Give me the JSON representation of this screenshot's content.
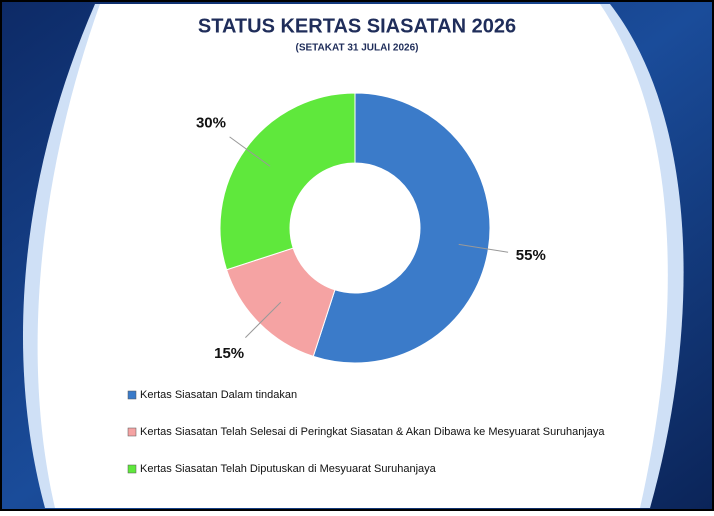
{
  "chart_data": {
    "type": "donut",
    "title": "STATUS KERTAS SIASATAN 2026",
    "subtitle": "(SETAKAT 31 JULAI 2026)",
    "categories": [
      "Kertas Siasatan Dalam tindakan",
      "Kertas Siasatan Telah Selesai di Peringkat Siasatan & Akan Dibawa ke Mesyuarat Suruhanjaya",
      "Kertas Siasatan Telah Diputuskan di Mesyuarat Suruhanjaya"
    ],
    "values": [
      55,
      15,
      30
    ],
    "value_labels": [
      "55%",
      "15%",
      "30%"
    ],
    "colors": [
      "#3b7bc9",
      "#f5a3a3",
      "#5fe83c"
    ],
    "legend": "bottom"
  }
}
